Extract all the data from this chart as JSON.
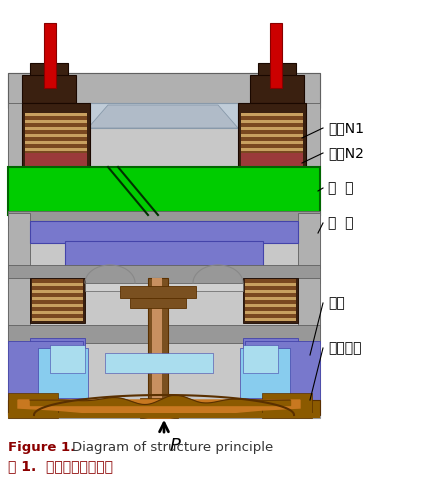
{
  "labels": {
    "coil_n1": "线圈N1",
    "coil_n2": "线圈N2",
    "iron_core": "铁  芯",
    "counterweight": "衡  铁",
    "pillar": "支柱",
    "membrane": "波纹膜片"
  },
  "caption_en_bold": "Figure 1.",
  "caption_en_rest": "Diagram of structure principle",
  "caption_cn": "图 1.  传感器结构原理图",
  "colors": {
    "bg": "#c8c8c8",
    "housing_gray": "#b0b0b0",
    "housing_med": "#989898",
    "housing_dark": "#606060",
    "housing_inner": "#d0d0d0",
    "coil_brown_dark": "#4a2800",
    "coil_brown_mid": "#8b5a00",
    "coil_stripe_light": "#c8a060",
    "coil_stripe_dark": "#7a4820",
    "green_core": "#00cc00",
    "green_dark": "#004400",
    "blue_purple": "#7878cc",
    "blue_dark": "#4444aa",
    "blue_light": "#88ccee",
    "blue_lighter": "#aaddee",
    "membrane_brown": "#8b5a00",
    "membrane_dark": "#5a3000",
    "membrane_light": "#c87820",
    "red_rod": "#cc0000",
    "pillar_brown": "#7a5020",
    "pillar_light": "#c89060"
  }
}
